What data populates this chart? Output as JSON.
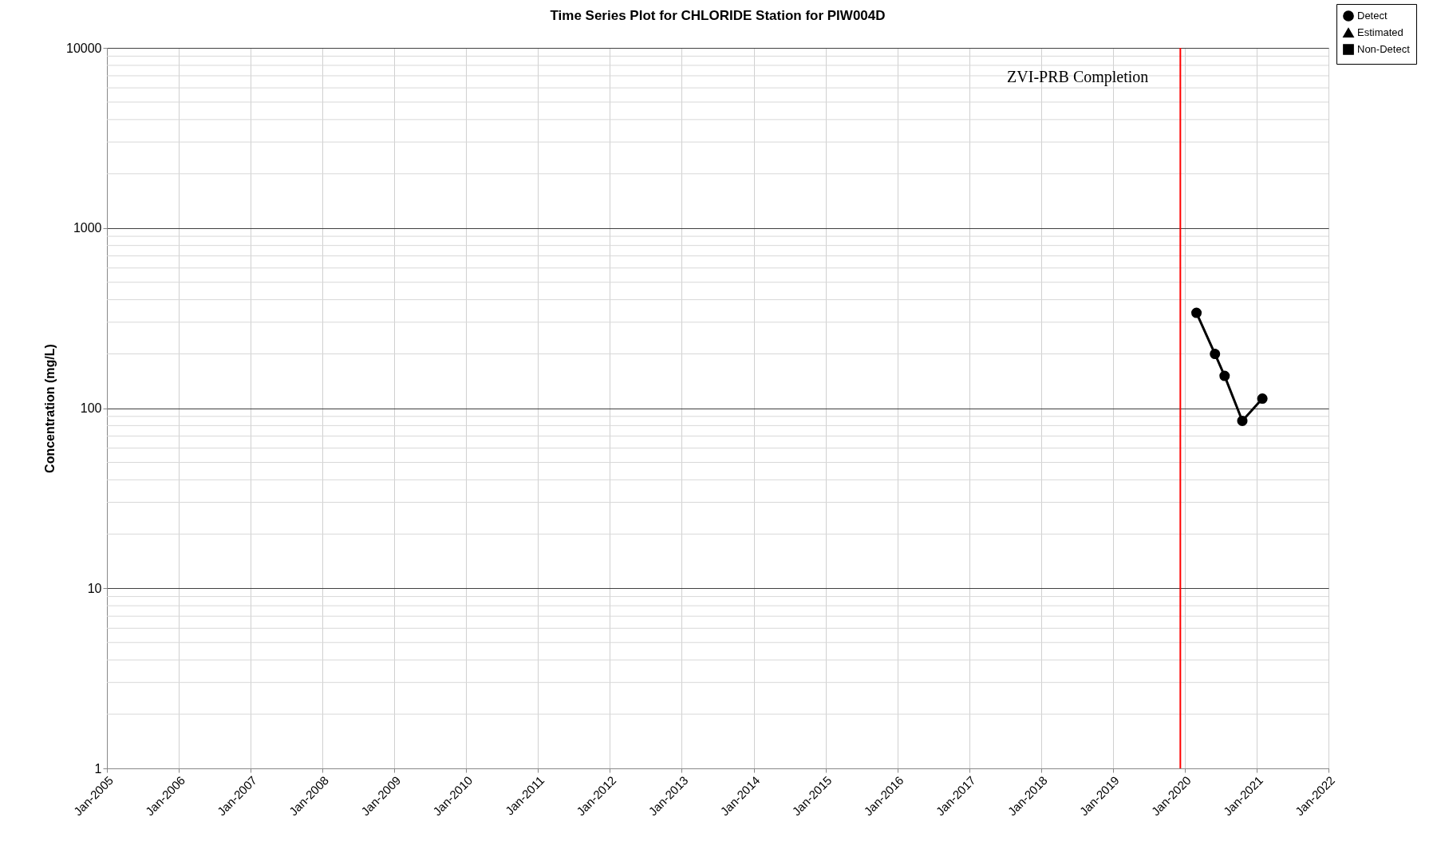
{
  "chart_data": {
    "type": "line",
    "title": "Time Series Plot for CHLORIDE Station for PIW004D",
    "ylabel": "Concentration (mg/L)",
    "log": "y",
    "grid": true,
    "legend": "top right",
    "line_style": "solid",
    "xlim": [
      "2005-01-01",
      "2022-01-01"
    ],
    "xticks": [
      {
        "value": "2005-01-01",
        "label": "Jan-2005"
      },
      {
        "value": "2006-01-01",
        "label": "Jan-2006"
      },
      {
        "value": "2007-01-01",
        "label": "Jan-2007"
      },
      {
        "value": "2008-01-01",
        "label": "Jan-2008"
      },
      {
        "value": "2009-01-01",
        "label": "Jan-2009"
      },
      {
        "value": "2010-01-01",
        "label": "Jan-2010"
      },
      {
        "value": "2011-01-01",
        "label": "Jan-2011"
      },
      {
        "value": "2012-01-01",
        "label": "Jan-2012"
      },
      {
        "value": "2013-01-01",
        "label": "Jan-2013"
      },
      {
        "value": "2014-01-01",
        "label": "Jan-2014"
      },
      {
        "value": "2015-01-01",
        "label": "Jan-2015"
      },
      {
        "value": "2016-01-01",
        "label": "Jan-2016"
      },
      {
        "value": "2017-01-01",
        "label": "Jan-2017"
      },
      {
        "value": "2018-01-01",
        "label": "Jan-2018"
      },
      {
        "value": "2019-01-01",
        "label": "Jan-2019"
      },
      {
        "value": "2020-01-01",
        "label": "Jan-2020"
      },
      {
        "value": "2021-01-01",
        "label": "Jan-2021"
      },
      {
        "value": "2022-01-01",
        "label": "Jan-2022"
      }
    ],
    "ylim": [
      1,
      10000
    ],
    "yticks": [
      1,
      10,
      100,
      1000,
      10000
    ],
    "x": [
      "2020-03-01",
      "2020-06-03",
      "2020-07-22",
      "2020-10-20",
      "2021-01-30"
    ],
    "series": [
      {
        "name": "Detect",
        "color": "#000000",
        "marker": "circle",
        "values": [
          338,
          200,
          151,
          85,
          113
        ]
      },
      {
        "name": "Estimated",
        "color": "#000000",
        "marker": "triangle",
        "values": [
          null,
          null,
          null,
          null,
          null
        ]
      },
      {
        "name": "Non-Detect",
        "color": "#000000",
        "marker": "square",
        "values": [
          null,
          null,
          null,
          null,
          null
        ]
      }
    ],
    "ref_lines": [
      {
        "axis": "x",
        "value": "2019-12-10",
        "label": "ZVI-PRB Completion",
        "color": "#ff0000",
        "line_style": "solid"
      }
    ]
  }
}
